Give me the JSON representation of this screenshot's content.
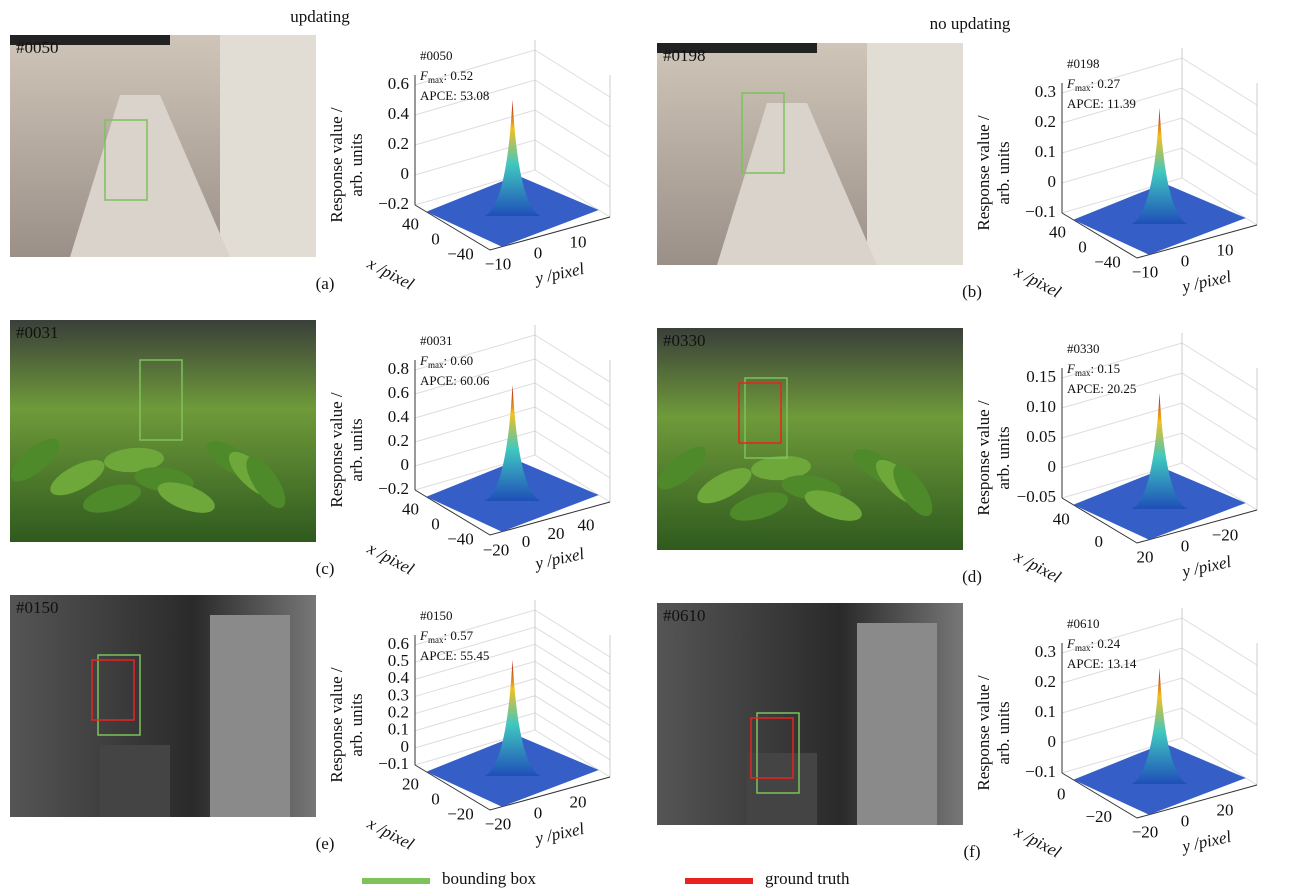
{
  "headings": {
    "left": "updating",
    "right": "no updating"
  },
  "axes": {
    "zlabel1": "Response value /",
    "zlabel2": "arb. units",
    "xlabel": "x /pixel",
    "ylabel": "y /pixel"
  },
  "fmax": {
    "symbol": "F",
    "sub": "max"
  },
  "panels": [
    {
      "caption": "(a)",
      "frame": "#0050",
      "fmax_value": ": 0.52",
      "apce": "APCE: 53.08",
      "zticks": [
        "0.6",
        "0.4",
        "0.2",
        "0",
        "−0.2"
      ],
      "xticks": [
        "40",
        "0",
        "−40"
      ],
      "yticks": [
        "−10",
        "0",
        "10"
      ]
    },
    {
      "caption": "(b)",
      "frame": "#0198",
      "fmax_value": ": 0.27",
      "apce": "APCE: 11.39",
      "zticks": [
        "0.3",
        "0.2",
        "0.1",
        "0",
        "−0.1"
      ],
      "xticks": [
        "40",
        "0",
        "−40"
      ],
      "yticks": [
        "−10",
        "0",
        "10"
      ]
    },
    {
      "caption": "(c)",
      "frame": "#0031",
      "fmax_value": ": 0.60",
      "apce": "APCE: 60.06",
      "zticks": [
        "0.8",
        "0.6",
        "0.4",
        "0.2",
        "0",
        "−0.2"
      ],
      "xticks": [
        "40",
        "0",
        "−40"
      ],
      "yticks": [
        "−20",
        "0",
        "20",
        "40"
      ]
    },
    {
      "caption": "(d)",
      "frame": "#0330",
      "fmax_value": ": 0.15",
      "apce": "APCE: 20.25",
      "zticks": [
        "0.15",
        "0.10",
        "0.05",
        "0",
        "−0.05"
      ],
      "xticks": [
        "40",
        "0"
      ],
      "yticks": [
        "20",
        "0",
        "−20"
      ]
    },
    {
      "caption": "(e)",
      "frame": "#0150",
      "fmax_value": ": 0.57",
      "apce": "APCE: 55.45",
      "zticks": [
        "0.6",
        "0.5",
        "0.4",
        "0.3",
        "0.2",
        "0.1",
        "0",
        "−0.1"
      ],
      "xticks": [
        "20",
        "0",
        "−20"
      ],
      "yticks": [
        "−20",
        "0",
        "20"
      ]
    },
    {
      "caption": "(f)",
      "frame": "#0610",
      "fmax_value": ": 0.24",
      "apce": "APCE: 13.14",
      "zticks": [
        "0.3",
        "0.2",
        "0.1",
        "0",
        "−0.1"
      ],
      "xticks": [
        "0",
        "−20"
      ],
      "yticks": [
        "−20",
        "0",
        "20"
      ]
    }
  ],
  "legend": [
    {
      "label": "bounding box",
      "color": "#7dc25a"
    },
    {
      "label": "ground truth",
      "color": "#e8231f"
    }
  ]
}
